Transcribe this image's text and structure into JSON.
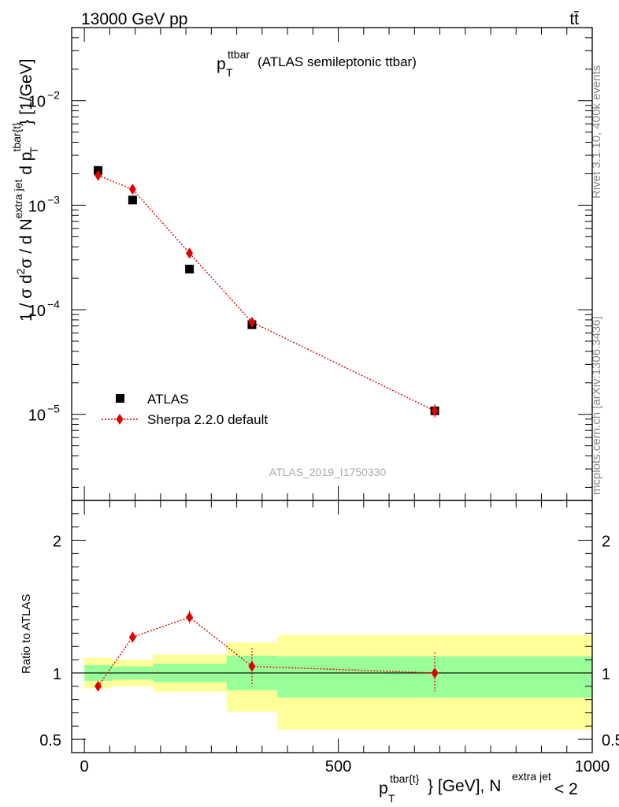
{
  "header": {
    "energy_label": "13000 GeV pp",
    "process_label": "tt̄"
  },
  "side_labels": {
    "rivet": "Rivet 3.1.10,  400k events",
    "mcplots": "mcplots.cern.ch [arXiv:1306.3436]"
  },
  "watermark": "ATLAS_2019_I1750330",
  "chart_data": [
    {
      "type": "scatter",
      "panel": "main",
      "title": {
        "base": "p",
        "sub": "T",
        "sup": "ttbar",
        "rest": "(ATLAS semileptonic ttbar)"
      },
      "ylabel": "1 / σ d²σ / d N^{extra jet} d p_T^{tbar{t}} [1/GeV]",
      "ylabel_parts": {
        "a": "1 / σ d",
        "b": "2",
        "c": "σ  /  d N",
        "d": "extra jet",
        "e": " d p",
        "f": "tbar{t}",
        "g": "T",
        "h": "} [1/GeV]"
      },
      "yscale": "log",
      "ylim": [
        1.5e-06,
        0.05
      ],
      "xlim": [
        -25,
        1000
      ],
      "y_ticks": [
        {
          "value": 1e-05,
          "base": "10",
          "exp": "−5"
        },
        {
          "value": 0.0001,
          "base": "10",
          "exp": "−4"
        },
        {
          "value": 0.001,
          "base": "10",
          "exp": "−3"
        },
        {
          "value": 0.01,
          "base": "10",
          "exp": "−2"
        }
      ],
      "legend_position": "lower-left",
      "series": [
        {
          "name": "ATLAS",
          "marker": "square",
          "color": "#000000",
          "points": [
            {
              "x": 27,
              "y": 0.00215
            },
            {
              "x": 95,
              "y": 0.00112
            },
            {
              "x": 207,
              "y": 0.000245
            },
            {
              "x": 330,
              "y": 7.2e-05
            },
            {
              "x": 690,
              "y": 1.08e-05
            }
          ]
        },
        {
          "name": "Sherpa 2.2.0 default",
          "marker": "diamond",
          "line": "dotted",
          "color": "#e00000",
          "points": [
            {
              "x": 27,
              "y": 0.00193,
              "ylo": 0.00185,
              "yhi": 0.00201
            },
            {
              "x": 95,
              "y": 0.00142,
              "ylo": 0.00136,
              "yhi": 0.00149
            },
            {
              "x": 207,
              "y": 0.000348,
              "ylo": 0.000332,
              "yhi": 0.000366
            },
            {
              "x": 330,
              "y": 7.6e-05,
              "ylo": 6.9e-05,
              "yhi": 8.4e-05
            },
            {
              "x": 690,
              "y": 1.08e-05,
              "ylo": 9.3e-06,
              "yhi": 1.25e-05
            }
          ]
        }
      ]
    },
    {
      "type": "scatter",
      "panel": "ratio",
      "ylabel": "Ratio to ATLAS",
      "xlabel_parts": {
        "a": "p",
        "b": "tbar{t}",
        "c": "T",
        "d": "} [GeV], N",
        "e": "extra jet",
        "f": " < 2"
      },
      "ylim": [
        0.4,
        2.3
      ],
      "xlim": [
        -25,
        1000
      ],
      "y_ticks": [
        {
          "value": 0.5,
          "label": "0.5"
        },
        {
          "value": 1,
          "label": "1"
        },
        {
          "value": 2,
          "label": "2"
        }
      ],
      "x_ticks": [
        {
          "value": 0,
          "label": "0"
        },
        {
          "value": 500,
          "label": "500"
        },
        {
          "value": 1000,
          "label": "1000"
        }
      ],
      "bands": [
        {
          "x0": 0,
          "x1": 55,
          "outer": [
            0.885,
            1.115
          ],
          "inner": [
            0.94,
            1.06
          ]
        },
        {
          "x0": 55,
          "x1": 135,
          "outer": [
            0.9,
            1.1
          ],
          "inner": [
            0.95,
            1.05
          ]
        },
        {
          "x0": 135,
          "x1": 280,
          "outer": [
            0.86,
            1.14
          ],
          "inner": [
            0.93,
            1.07
          ]
        },
        {
          "x0": 280,
          "x1": 380,
          "outer": [
            0.71,
            1.23
          ],
          "inner": [
            0.87,
            1.13
          ]
        },
        {
          "x0": 380,
          "x1": 1000,
          "outer": [
            0.575,
            1.285
          ],
          "inner": [
            0.815,
            1.125
          ]
        }
      ],
      "series": [
        {
          "name": "Sherpa 2.2.0 default",
          "marker": "diamond",
          "line": "dotted",
          "color": "#e00000",
          "points": [
            {
              "x": 27,
              "y": 0.9,
              "ylo": 0.87,
              "yhi": 0.935
            },
            {
              "x": 95,
              "y": 1.27,
              "ylo": 1.23,
              "yhi": 1.31
            },
            {
              "x": 207,
              "y": 1.42,
              "ylo": 1.37,
              "yhi": 1.47
            },
            {
              "x": 330,
              "y": 1.05,
              "ylo": 0.9,
              "yhi": 1.19
            },
            {
              "x": 690,
              "y": 1.0,
              "ylo": 0.86,
              "yhi": 1.155
            }
          ]
        }
      ]
    }
  ]
}
